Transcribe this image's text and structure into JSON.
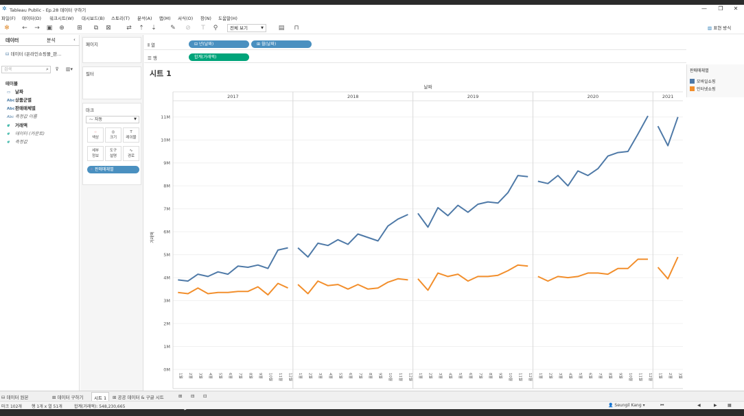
{
  "window": {
    "title": "Tableau Public - Ep.28 데이터 구하기"
  },
  "menu": [
    "파일(F)",
    "데이터(D)",
    "워크시트(W)",
    "대시보드(B)",
    "스토리(T)",
    "분석(A)",
    "맵(M)",
    "서식(O)",
    "창(N)",
    "도움말(H)"
  ],
  "toolbar": {
    "view_select": "전체 보기",
    "show_me": "표현 방식"
  },
  "data_pane": {
    "tab_data": "데이터",
    "tab_analysis": "분석",
    "datasource": "데이터 (온라인쇼핑몰_판...",
    "search_placeholder": "검색",
    "tables_label": "테이블",
    "fields": [
      {
        "icon": "▭",
        "name": "날짜",
        "bold": true
      },
      {
        "icon": "Abc",
        "name": "상품군별",
        "bold": true
      },
      {
        "icon": "Abc",
        "name": "판매매체별",
        "bold": true
      },
      {
        "icon": "Abc",
        "name": "측정값 이름",
        "italic": true
      },
      {
        "icon": "#",
        "name": "거래액",
        "bold": true,
        "measure": true
      },
      {
        "icon": "#",
        "name": "데이터 (카운트)",
        "italic": true,
        "measure": true
      },
      {
        "icon": "#",
        "name": "측정값",
        "italic": true,
        "measure": true
      }
    ]
  },
  "cards": {
    "pages": "페이지",
    "filters": "필터",
    "marks": "마크",
    "mark_type": "자동",
    "buttons": [
      "색상",
      "크기",
      "레이블",
      "세부\n정보",
      "도구\n설명",
      "경로"
    ],
    "color_pill": "판매매체별"
  },
  "shelves": {
    "columns_label": "열",
    "rows_label": "행",
    "col_pills": [
      "년(날짜)",
      "월(날짜)"
    ],
    "row_pills": [
      "합계(거래액)"
    ]
  },
  "sheet": {
    "title": "시트 1",
    "x_header": "날짜"
  },
  "legend": {
    "title": "판매매체별",
    "items": [
      {
        "label": "모바일쇼핑",
        "color": "#4e79a7"
      },
      {
        "label": "인터넷쇼핑",
        "color": "#f28e2b"
      }
    ]
  },
  "chart_data": {
    "type": "line",
    "ylabel": "거래액",
    "y_ticks": [
      "0M",
      "1M",
      "2M",
      "3M",
      "4M",
      "5M",
      "6M",
      "7M",
      "8M",
      "9M",
      "10M",
      "11M"
    ],
    "ylim": [
      0,
      11.5
    ],
    "y_unit": "M",
    "years": [
      "2017",
      "2018",
      "2019",
      "2020",
      "2021"
    ],
    "months_per_year": [
      12,
      12,
      12,
      12,
      3
    ],
    "month_labels": [
      "1월",
      "2월",
      "3월",
      "4월",
      "5월",
      "6월",
      "7월",
      "8월",
      "9월",
      "10월",
      "11월",
      "12월"
    ],
    "series": [
      {
        "name": "모바일쇼핑",
        "color": "#4e79a7",
        "values": [
          [
            3.9,
            3.85,
            4.15,
            4.05,
            4.25,
            4.15,
            4.5,
            4.45,
            4.55,
            4.4,
            5.2,
            5.3
          ],
          [
            5.3,
            4.9,
            5.5,
            5.4,
            5.65,
            5.45,
            5.9,
            5.75,
            5.6,
            6.25,
            6.55,
            6.75
          ],
          [
            6.8,
            6.2,
            7.05,
            6.7,
            7.15,
            6.85,
            7.2,
            7.3,
            7.25,
            7.7,
            8.45,
            8.4
          ],
          [
            8.2,
            8.1,
            8.45,
            8.0,
            8.65,
            8.45,
            8.75,
            9.3,
            9.45,
            9.5,
            10.25,
            11.05
          ],
          [
            10.6,
            9.75,
            11.0
          ]
        ]
      },
      {
        "name": "인터넷쇼핑",
        "color": "#f28e2b",
        "values": [
          [
            3.35,
            3.3,
            3.55,
            3.3,
            3.35,
            3.35,
            3.4,
            3.4,
            3.6,
            3.25,
            3.75,
            3.55
          ],
          [
            3.7,
            3.3,
            3.85,
            3.65,
            3.7,
            3.5,
            3.7,
            3.5,
            3.55,
            3.8,
            3.95,
            3.9
          ],
          [
            3.95,
            3.45,
            4.2,
            4.05,
            4.15,
            3.85,
            4.05,
            4.05,
            4.1,
            4.3,
            4.55,
            4.5
          ],
          [
            4.05,
            3.85,
            4.05,
            4.0,
            4.05,
            4.2,
            4.2,
            4.15,
            4.4,
            4.4,
            4.8,
            4.8
          ],
          [
            4.45,
            3.95,
            4.9
          ]
        ]
      }
    ]
  },
  "tabs": [
    "데이터 원본",
    "데이터 구하기",
    "시트 1",
    "공공 데이터 & 구글 시트"
  ],
  "active_tab": "시트 1",
  "status": {
    "marks": "마크 102개",
    "rows_cols": "행 1개 x 열 51개",
    "sum": "합계(거래액): 548,230,665",
    "user": "Seungil Kang"
  }
}
